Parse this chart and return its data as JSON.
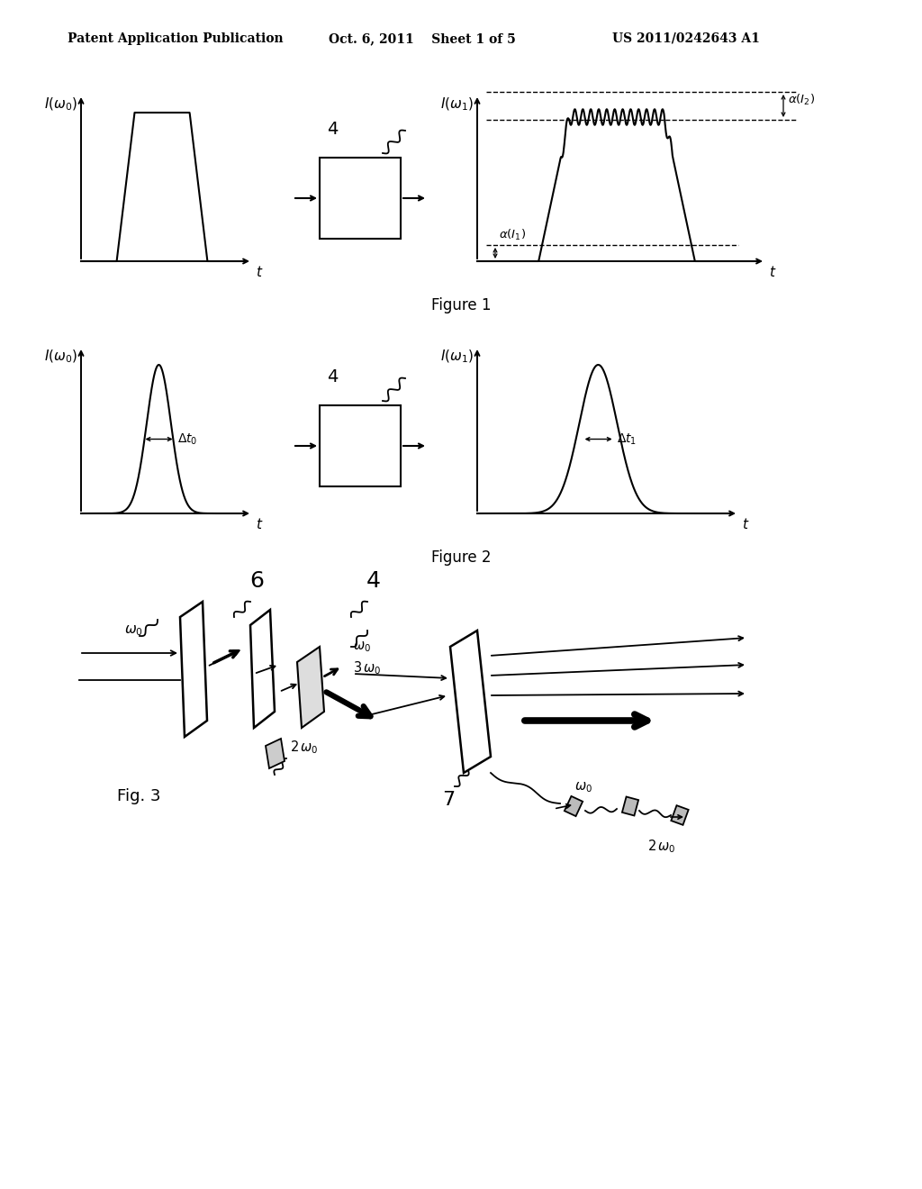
{
  "bg_color": "#ffffff",
  "header_left": "Patent Application Publication",
  "header_mid": "Oct. 6, 2011    Sheet 1 of 5",
  "header_right": "US 2011/0242643 A1",
  "fig1_caption": "Figure 1",
  "fig2_caption": "Figure 2",
  "fig3_caption": "Fig. 3"
}
